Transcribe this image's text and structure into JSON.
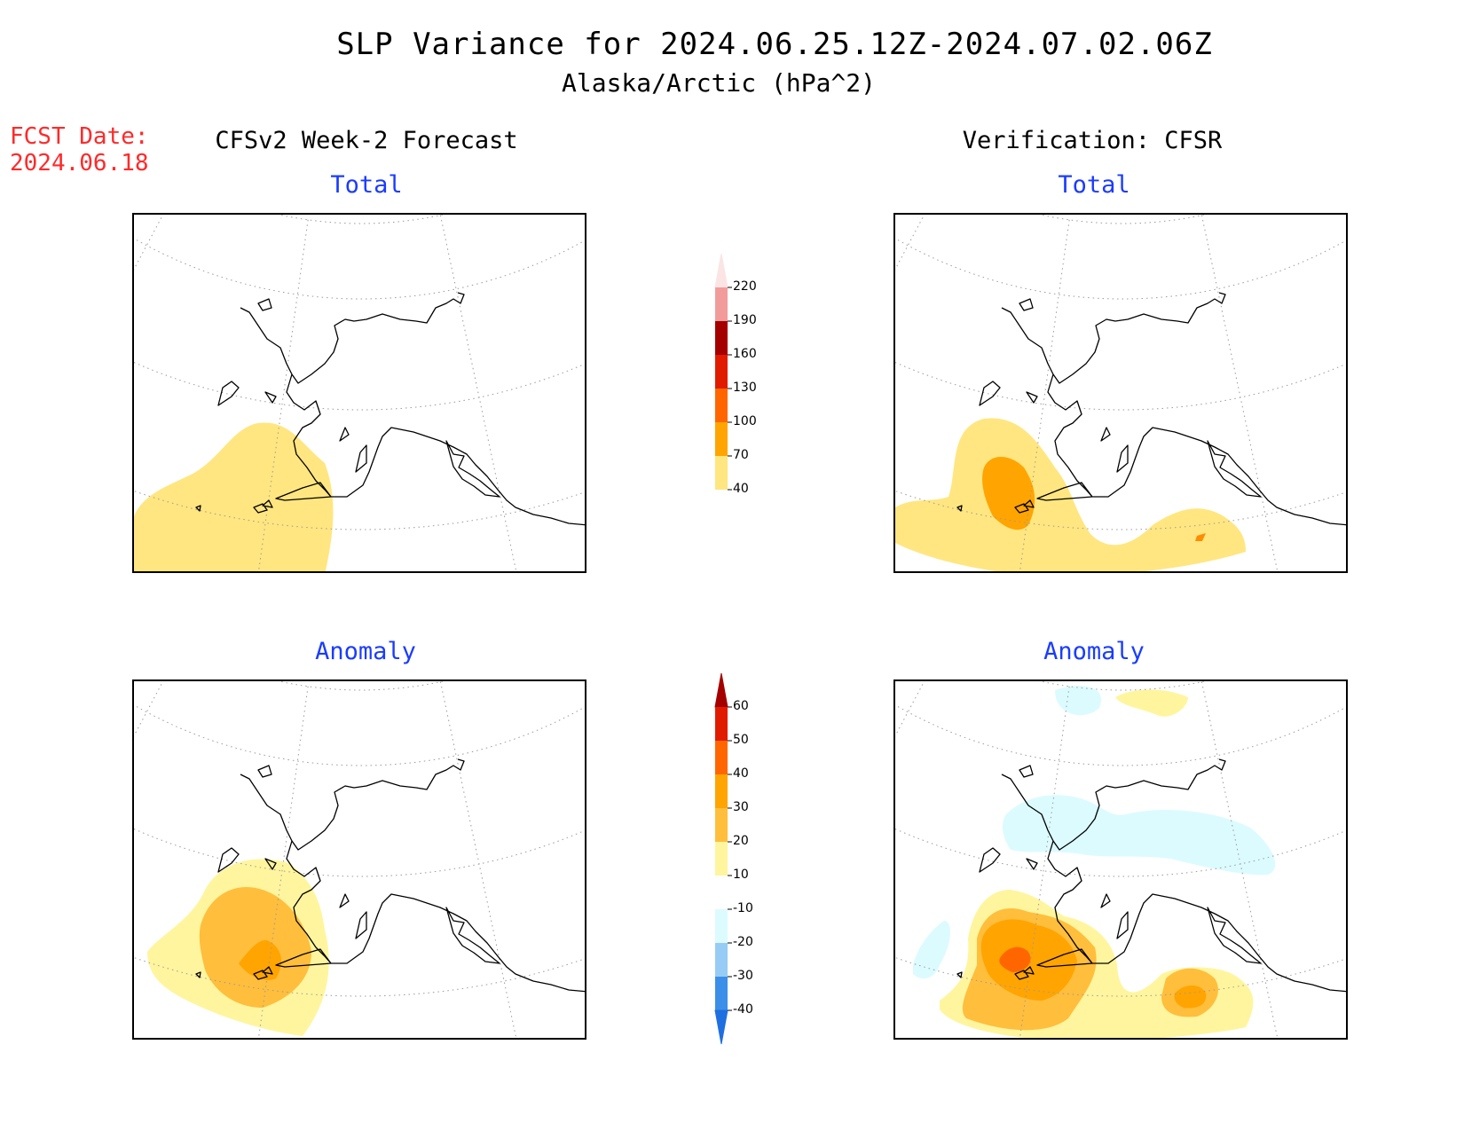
{
  "header": {
    "title": "SLP Variance for 2024.06.25.12Z-2024.07.02.06Z",
    "subtitle": "Alaska/Arctic (hPa^2)"
  },
  "fcst": {
    "line1": "FCST Date:",
    "line2": "2024.06.18"
  },
  "columns": {
    "left": "CFSv2 Week-2 Forecast",
    "right": "Verification: CFSR"
  },
  "panels": {
    "tl": {
      "label": "Total"
    },
    "tr": {
      "label": "Total"
    },
    "bl": {
      "label": "Anomaly"
    },
    "br": {
      "label": "Anomaly"
    }
  },
  "colorbars": {
    "total": {
      "labels": [
        "40",
        "70",
        "100",
        "130",
        "160",
        "190",
        "220"
      ],
      "colors": [
        "#ffe680",
        "#ffa400",
        "#ff6600",
        "#e11b00",
        "#a50000",
        "#f29b9b",
        "#fbe4e4"
      ]
    },
    "anomaly": {
      "labels": [
        "-40",
        "-30",
        "-20",
        "-10",
        "10",
        "20",
        "30",
        "40",
        "50",
        "60"
      ],
      "colors": [
        "#1e6fe0",
        "#3c8fe8",
        "#96ccf5",
        "#dcfbff",
        "#ffffff",
        "#fff59e",
        "#ffbe3c",
        "#ffa400",
        "#ff6600",
        "#e11b00",
        "#a50000"
      ]
    }
  },
  "chart_data": {
    "type": "heatmap",
    "title": "SLP Variance for 2024.06.25.12Z-2024.07.02.06Z",
    "subtitle": "Alaska/Arctic (hPa^2)",
    "units": "hPa^2",
    "levels_total": [
      40,
      70,
      100,
      130,
      160,
      190,
      220
    ],
    "levels_anomaly": [
      -40,
      -30,
      -20,
      -10,
      10,
      20,
      30,
      40,
      50,
      60
    ],
    "panels": [
      {
        "name": "CFSv2 Week-2 Forecast Total",
        "max_band": "40-70",
        "location": "Bering Sea / southwest Alaska"
      },
      {
        "name": "Verification CFSR Total",
        "max_band": "70-100",
        "location": "Bering Sea; secondary 40-70 area in Gulf of Alaska"
      },
      {
        "name": "CFSv2 Week-2 Forecast Anomaly",
        "max_band": "30-40",
        "location": "Bering Sea"
      },
      {
        "name": "Verification CFSR Anomaly",
        "max_band": "40-50",
        "location": "Bering Sea; secondary 30-40 in Gulf of Alaska; weak -10 to -20 over northern Alaska"
      }
    ]
  }
}
